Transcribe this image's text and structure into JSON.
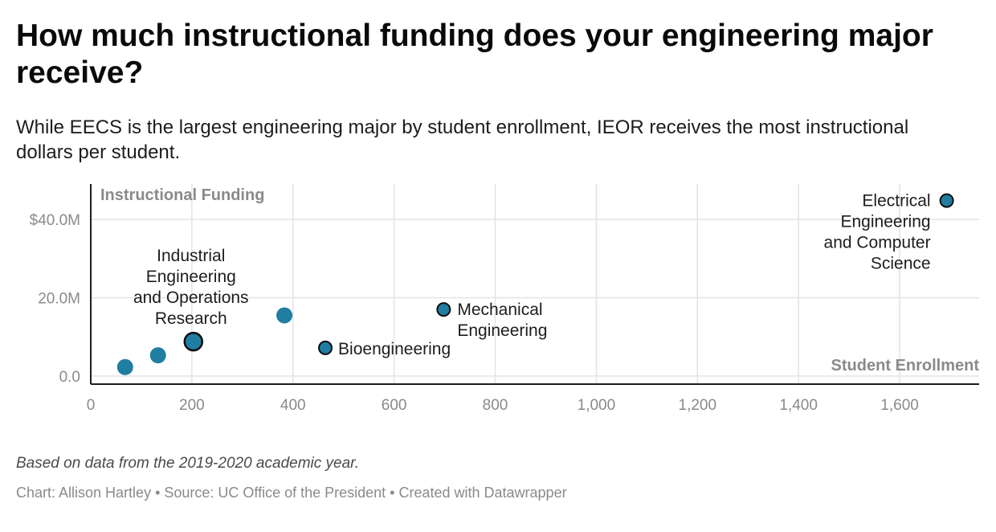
{
  "header": {
    "title": "How much instructional funding does your engineering major receive?",
    "subtitle": "While EECS is the largest engineering major by student enrollment, IEOR receives the most instructional dollars per student."
  },
  "chart_data": {
    "type": "scatter",
    "xlabel": "Student Enrollment",
    "ylabel": "Instructional Funding",
    "xlim": [
      0,
      1750
    ],
    "ylim": [
      -1,
      49
    ],
    "x_ticks": [
      0,
      200,
      400,
      600,
      800,
      1000,
      1200,
      1400,
      1600
    ],
    "x_tick_labels": [
      "0",
      "200",
      "400",
      "600",
      "800",
      "1,000",
      "1,200",
      "1,400",
      "1,600"
    ],
    "y_ticks": [
      0,
      20,
      40
    ],
    "y_tick_labels": [
      "0.0",
      "20.0M",
      "$40.0M"
    ],
    "grid": true,
    "point_color": "#1f7ea1",
    "points": [
      {
        "label": "",
        "x": 68,
        "y": 2.3
      },
      {
        "label": "",
        "x": 133,
        "y": 5.3
      },
      {
        "label": "Industrial Engineering and Operations Research",
        "label_lines": [
          "Industrial",
          "Engineering",
          "and Operations",
          "Research"
        ],
        "x": 203,
        "y": 8.8,
        "highlight": true
      },
      {
        "label": "",
        "x": 383,
        "y": 15.5
      },
      {
        "label": "Bioengineering",
        "label_lines": [
          "Bioengineering"
        ],
        "x": 464,
        "y": 7.2
      },
      {
        "label": "Mechanical Engineering",
        "label_lines": [
          "Mechanical",
          "Engineering"
        ],
        "x": 698,
        "y": 17.0
      },
      {
        "label": "Electrical Engineering and Computer Science",
        "label_lines": [
          "Electrical",
          "Engineering",
          "and Computer",
          "Science"
        ],
        "x": 1693,
        "y": 44.8
      }
    ]
  },
  "footer": {
    "notes": "Based on data from the 2019-2020 academic year.",
    "byline": "Chart: Allison Hartley • Source: UC Office of the President • Created with Datawrapper"
  }
}
